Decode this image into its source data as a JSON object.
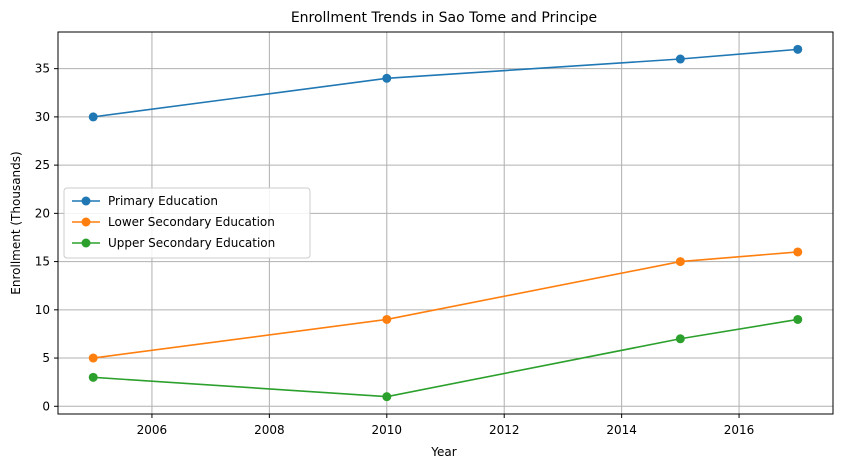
{
  "chart_data": {
    "type": "line",
    "title": "Enrollment Trends in Sao Tome and Principe",
    "xlabel": "Year",
    "ylabel": "Enrollment (Thousands)",
    "x": [
      2005,
      2010,
      2015,
      2017
    ],
    "xlim": [
      2004.4,
      2017.6
    ],
    "ylim": [
      -0.8,
      38.8
    ],
    "xticks": [
      2006,
      2008,
      2010,
      2012,
      2014,
      2016
    ],
    "yticks": [
      0,
      5,
      10,
      15,
      20,
      25,
      30,
      35
    ],
    "grid": true,
    "legend_position": "center-left",
    "series": [
      {
        "name": "Primary Education",
        "color": "#1f77b4",
        "values": [
          30,
          34,
          36,
          37
        ]
      },
      {
        "name": "Lower Secondary Education",
        "color": "#ff7f0e",
        "values": [
          5,
          9,
          15,
          16
        ]
      },
      {
        "name": "Upper Secondary Education",
        "color": "#2ca02c",
        "values": [
          3,
          1,
          7,
          9
        ]
      }
    ]
  }
}
